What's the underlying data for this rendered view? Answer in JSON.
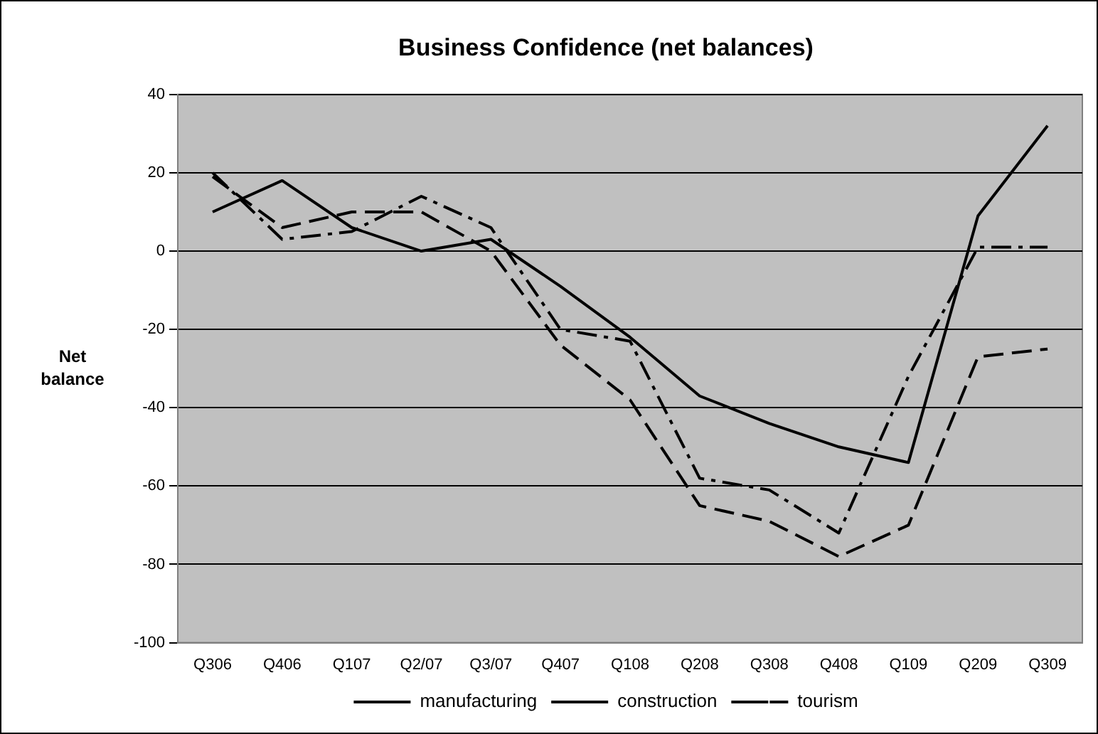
{
  "chart_data": {
    "type": "line",
    "title": "Business Confidence (net balances)",
    "ylabel": "Net balance",
    "categories": [
      "Q306",
      "Q406",
      "Q107",
      "Q2/07",
      "Q3/07",
      "Q407",
      "Q108",
      "Q208",
      "Q308",
      "Q408",
      "Q109",
      "Q209",
      "Q309"
    ],
    "series": [
      {
        "name": "manufacturing",
        "color": "#000000",
        "line_style": "solid",
        "values": [
          10,
          18,
          6,
          0,
          3,
          -9,
          -22,
          -37,
          -44,
          -50,
          -54,
          9,
          32
        ]
      },
      {
        "name": "construction",
        "color": "#000000",
        "line_style": "dashed",
        "values": [
          19,
          6,
          10,
          10,
          0,
          -24,
          -38,
          -65,
          -69,
          -78,
          -70,
          -27,
          -25
        ]
      },
      {
        "name": "tourism",
        "color": "#000000",
        "line_style": "dashdot",
        "values": [
          20,
          3,
          5,
          14,
          6,
          -20,
          -23,
          -58,
          -61,
          -72,
          -32,
          1,
          1
        ]
      }
    ],
    "ylim": [
      -100,
      40
    ],
    "yticks": [
      -100,
      -80,
      -60,
      -40,
      -20,
      0,
      20,
      40
    ],
    "grid": "y",
    "legend": "bottom",
    "marker": "none"
  }
}
